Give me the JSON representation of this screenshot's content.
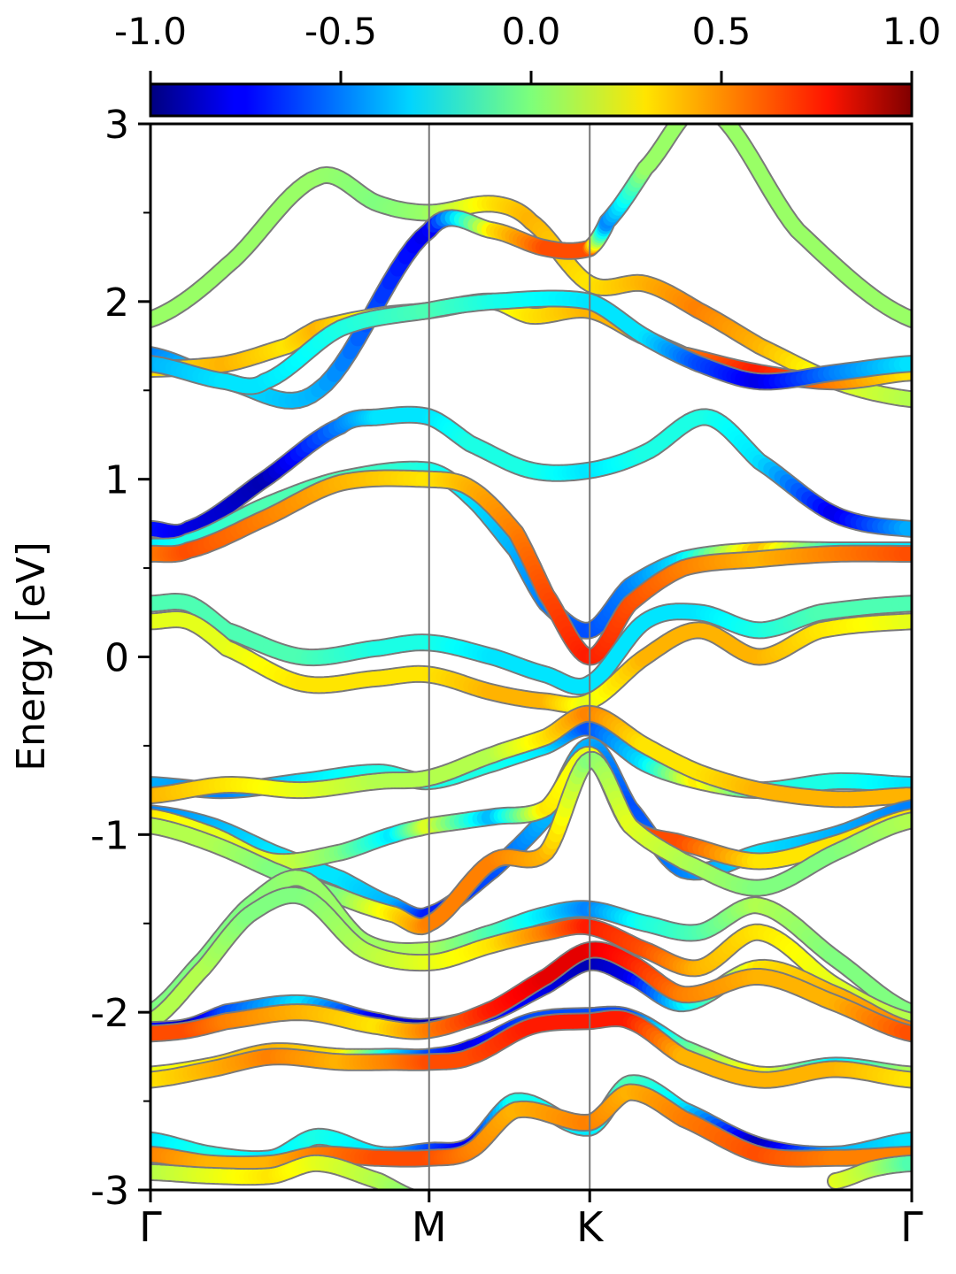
{
  "chart_data": {
    "type": "line",
    "title": "",
    "xlabel": "",
    "ylabel": "Energy [eV]",
    "ylim": [
      -3,
      3
    ],
    "y_ticks": [
      -3,
      -2,
      -1,
      0,
      1,
      2,
      3
    ],
    "y_tick_labels": [
      "-3",
      "-2",
      "-1",
      "0",
      "1",
      "2",
      "3"
    ],
    "high_symmetry_points": [
      {
        "label": "Γ",
        "k": 0.0
      },
      {
        "label": "M",
        "k": 0.366
      },
      {
        "label": "K",
        "k": 0.577
      },
      {
        "label": "Γ",
        "k": 1.0
      }
    ],
    "grid": false,
    "colorbar": {
      "position": "top",
      "colormap": "jet",
      "range": [
        -1.0,
        1.0
      ],
      "tick_labels": [
        "-1.0",
        "-0.5",
        "0.0",
        "0.5",
        "1.0"
      ]
    },
    "series": [
      {
        "k": [
          0,
          0.1,
          0.22,
          0.3,
          0.366,
          0.45,
          0.5,
          0.577,
          0.65,
          0.72,
          0.8,
          0.9,
          1.0
        ],
        "values": [
          1.9,
          2.2,
          2.7,
          2.55,
          2.5,
          2.55,
          2.45,
          2.1,
          2.1,
          1.95,
          1.75,
          1.55,
          1.45
        ],
        "w": [
          0.05,
          0.05,
          0.05,
          0.0,
          0.05,
          0.3,
          0.4,
          0.3,
          0.4,
          0.5,
          0.4,
          0.2,
          0.1
        ]
      },
      {
        "k": [
          0,
          0.1,
          0.22,
          0.366,
          0.45,
          0.52,
          0.577,
          0.6,
          0.65,
          0.73,
          0.85,
          1.0
        ],
        "values": [
          1.7,
          1.55,
          1.5,
          2.4,
          2.4,
          2.3,
          2.3,
          2.45,
          2.75,
          3.1,
          2.4,
          1.9
        ],
        "w": [
          -0.5,
          -0.3,
          -0.4,
          -0.8,
          0.3,
          0.6,
          0.6,
          -0.5,
          0.05,
          0.05,
          0.05,
          0.05
        ]
      },
      {
        "k": [
          0,
          0.1,
          0.18,
          0.22,
          0.3,
          0.366,
          0.45,
          0.5,
          0.577,
          0.65,
          0.7,
          0.8,
          0.9,
          1.0
        ],
        "values": [
          1.62,
          1.65,
          1.75,
          1.85,
          1.92,
          1.95,
          2.0,
          1.92,
          1.95,
          1.8,
          1.7,
          1.6,
          1.55,
          1.6
        ],
        "w": [
          0.3,
          0.4,
          0.3,
          0.4,
          0.2,
          0.1,
          0.2,
          0.3,
          0.4,
          0.4,
          0.5,
          0.7,
          0.5,
          0.3
        ]
      },
      {
        "k": [
          0,
          0.1,
          0.15,
          0.25,
          0.366,
          0.45,
          0.577,
          0.65,
          0.72,
          0.8,
          0.9,
          1.0
        ],
        "values": [
          1.65,
          1.55,
          1.55,
          1.85,
          1.95,
          2.0,
          2.0,
          1.8,
          1.65,
          1.55,
          1.6,
          1.65
        ],
        "w": [
          -0.4,
          -0.3,
          -0.3,
          -0.2,
          -0.1,
          -0.2,
          -0.3,
          -0.3,
          -0.6,
          -0.8,
          -0.5,
          -0.3
        ]
      },
      {
        "k": [
          0,
          0.05,
          0.15,
          0.25,
          0.3,
          0.366,
          0.42,
          0.5,
          0.577,
          0.65,
          0.73,
          0.8,
          0.9,
          1.0
        ],
        "values": [
          0.72,
          0.72,
          1.0,
          1.3,
          1.35,
          1.35,
          1.2,
          1.05,
          1.05,
          1.15,
          1.35,
          1.1,
          0.8,
          0.72
        ],
        "w": [
          -0.7,
          -0.8,
          -0.9,
          -0.5,
          -0.3,
          -0.3,
          -0.2,
          -0.2,
          -0.3,
          -0.2,
          -0.2,
          -0.3,
          -0.8,
          -0.4
        ]
      },
      {
        "k": [
          0,
          0.05,
          0.15,
          0.25,
          0.366,
          0.42,
          0.48,
          0.52,
          0.577,
          0.63,
          0.7,
          0.8,
          0.9,
          1.0
        ],
        "values": [
          0.62,
          0.65,
          0.85,
          1.0,
          1.05,
          0.9,
          0.6,
          0.3,
          0.15,
          0.4,
          0.55,
          0.6,
          0.6,
          0.6
        ],
        "w": [
          -0.3,
          -0.2,
          -0.1,
          -0.1,
          -0.2,
          -0.3,
          -0.4,
          -0.5,
          -0.6,
          -0.5,
          -0.3,
          0.4,
          -0.2,
          -0.3
        ]
      },
      {
        "k": [
          0,
          0.05,
          0.15,
          0.25,
          0.366,
          0.42,
          0.48,
          0.52,
          0.577,
          0.63,
          0.7,
          0.8,
          0.9,
          1.0
        ],
        "values": [
          0.58,
          0.6,
          0.78,
          0.98,
          1.0,
          0.95,
          0.7,
          0.35,
          0.0,
          0.3,
          0.5,
          0.55,
          0.58,
          0.58
        ],
        "w": [
          0.5,
          0.6,
          0.5,
          0.4,
          0.3,
          0.4,
          0.5,
          0.6,
          0.7,
          0.6,
          0.5,
          0.4,
          0.5,
          0.6
        ]
      },
      {
        "k": [
          0,
          0.05,
          0.1,
          0.2,
          0.3,
          0.366,
          0.45,
          0.52,
          0.577,
          0.65,
          0.72,
          0.8,
          0.88,
          1.0
        ],
        "values": [
          0.3,
          0.3,
          0.15,
          0.0,
          0.05,
          0.08,
          0.0,
          -0.1,
          -0.15,
          0.2,
          0.25,
          0.15,
          0.25,
          0.3
        ],
        "w": [
          -0.1,
          -0.1,
          -0.1,
          -0.1,
          -0.2,
          -0.2,
          -0.3,
          -0.3,
          -0.3,
          -0.3,
          -0.3,
          -0.2,
          -0.1,
          -0.1
        ]
      },
      {
        "k": [
          0,
          0.05,
          0.1,
          0.2,
          0.3,
          0.366,
          0.45,
          0.52,
          0.577,
          0.65,
          0.72,
          0.8,
          0.88,
          1.0
        ],
        "values": [
          0.2,
          0.2,
          0.05,
          -0.15,
          -0.12,
          -0.1,
          -0.2,
          -0.25,
          -0.25,
          0.0,
          0.15,
          0.0,
          0.15,
          0.2
        ],
        "w": [
          0.2,
          0.2,
          0.2,
          0.3,
          0.3,
          0.3,
          0.4,
          0.4,
          0.2,
          0.4,
          0.4,
          0.4,
          0.3,
          0.2
        ]
      },
      {
        "k": [
          0,
          0.1,
          0.2,
          0.3,
          0.366,
          0.45,
          0.52,
          0.577,
          0.65,
          0.72,
          0.8,
          0.9,
          1.0
        ],
        "values": [
          -0.72,
          -0.75,
          -0.7,
          -0.65,
          -0.7,
          -0.6,
          -0.5,
          -0.4,
          -0.6,
          -0.7,
          -0.75,
          -0.7,
          -0.72
        ],
        "w": [
          -0.4,
          -0.5,
          -0.3,
          -0.2,
          -0.2,
          -0.2,
          -0.3,
          -0.6,
          -0.3,
          0.3,
          -0.2,
          -0.2,
          -0.3
        ]
      },
      {
        "k": [
          0,
          0.1,
          0.2,
          0.3,
          0.366,
          0.45,
          0.52,
          0.577,
          0.65,
          0.72,
          0.8,
          0.9,
          1.0
        ],
        "values": [
          -0.78,
          -0.72,
          -0.75,
          -0.7,
          -0.68,
          -0.55,
          -0.45,
          -0.32,
          -0.5,
          -0.65,
          -0.75,
          -0.8,
          -0.78
        ],
        "w": [
          0.4,
          0.3,
          0.2,
          0.1,
          0.1,
          0.1,
          0.3,
          0.5,
          0.3,
          0.3,
          0.4,
          0.4,
          0.4
        ]
      },
      {
        "k": [
          0,
          0.08,
          0.16,
          0.25,
          0.32,
          0.366,
          0.45,
          0.52,
          0.577,
          0.63,
          0.7,
          0.8,
          0.9,
          1.0
        ],
        "values": [
          -0.88,
          -0.95,
          -1.1,
          -1.25,
          -1.4,
          -1.45,
          -1.2,
          -0.9,
          -0.5,
          -0.85,
          -1.2,
          -1.1,
          -1.0,
          -0.85
        ],
        "w": [
          -0.5,
          -0.4,
          -0.3,
          -0.3,
          -0.4,
          -0.7,
          -0.6,
          -0.4,
          -0.4,
          -0.6,
          -0.5,
          -0.3,
          -0.4,
          -0.5
        ]
      },
      {
        "k": [
          0,
          0.08,
          0.16,
          0.25,
          0.32,
          0.366,
          0.45,
          0.52,
          0.577,
          0.63,
          0.7,
          0.8,
          0.9,
          1.0
        ],
        "values": [
          -0.9,
          -1.0,
          -1.15,
          -1.1,
          -1.0,
          -0.95,
          -0.9,
          -0.85,
          -0.55,
          -0.95,
          -1.05,
          -1.15,
          -1.05,
          -0.9
        ],
        "w": [
          0.3,
          0.2,
          0.2,
          0.0,
          -0.3,
          0.2,
          -0.4,
          0.3,
          0.2,
          0.6,
          0.6,
          0.3,
          0.3,
          0.3
        ]
      },
      {
        "k": [
          0,
          0.08,
          0.16,
          0.25,
          0.32,
          0.366,
          0.45,
          0.52,
          0.577,
          0.63,
          0.7,
          0.8,
          0.9,
          1.0
        ],
        "values": [
          -0.95,
          -1.05,
          -1.2,
          -1.35,
          -1.45,
          -1.5,
          -1.15,
          -1.1,
          -0.58,
          -0.95,
          -1.15,
          -1.3,
          -1.1,
          -0.92
        ],
        "w": [
          0.1,
          0.1,
          0.0,
          0.0,
          0.3,
          0.5,
          0.5,
          0.4,
          0.0,
          0.2,
          0.1,
          0.0,
          0.0,
          0.1
        ]
      },
      {
        "k": [
          0,
          0.07,
          0.13,
          0.2,
          0.28,
          0.366,
          0.45,
          0.52,
          0.577,
          0.65,
          0.72,
          0.8,
          0.9,
          1.0
        ],
        "values": [
          -2.0,
          -1.7,
          -1.4,
          -1.25,
          -1.6,
          -1.65,
          -1.55,
          -1.45,
          -1.42,
          -1.5,
          -1.55,
          -1.4,
          -1.7,
          -2.0
        ],
        "w": [
          0.0,
          0.0,
          0.0,
          0.05,
          0.05,
          0.1,
          -0.1,
          -0.3,
          -0.5,
          -0.2,
          -0.1,
          0.1,
          0.0,
          0.0
        ]
      },
      {
        "k": [
          0,
          0.07,
          0.13,
          0.2,
          0.28,
          0.366,
          0.45,
          0.52,
          0.577,
          0.65,
          0.72,
          0.8,
          0.9,
          1.0
        ],
        "values": [
          -2.05,
          -1.75,
          -1.45,
          -1.35,
          -1.65,
          -1.72,
          -1.62,
          -1.55,
          -1.52,
          -1.65,
          -1.75,
          -1.55,
          -1.85,
          -2.05
        ],
        "w": [
          0.1,
          0.1,
          0.0,
          0.0,
          0.1,
          0.2,
          0.3,
          0.5,
          0.7,
          0.6,
          0.4,
          0.3,
          0.2,
          0.1
        ]
      },
      {
        "k": [
          0,
          0.05,
          0.1,
          0.2,
          0.3,
          0.366,
          0.45,
          0.52,
          0.577,
          0.63,
          0.7,
          0.8,
          0.9,
          1.0
        ],
        "values": [
          -2.1,
          -2.08,
          -2.0,
          -1.95,
          -2.05,
          -2.08,
          -2.0,
          -1.85,
          -1.72,
          -1.8,
          -1.95,
          -1.75,
          -1.9,
          -2.1
        ],
        "w": [
          -0.7,
          -0.9,
          -0.6,
          -0.3,
          -0.8,
          -0.9,
          -0.7,
          -0.8,
          -0.9,
          -0.8,
          -0.3,
          0.3,
          0.4,
          0.5
        ]
      },
      {
        "k": [
          0,
          0.05,
          0.1,
          0.2,
          0.3,
          0.366,
          0.45,
          0.52,
          0.577,
          0.63,
          0.7,
          0.8,
          0.9,
          1.0
        ],
        "values": [
          -2.12,
          -2.1,
          -2.05,
          -2.0,
          -2.08,
          -2.1,
          -1.98,
          -1.8,
          -1.65,
          -1.72,
          -1.9,
          -1.8,
          -1.95,
          -2.12
        ],
        "w": [
          0.6,
          0.6,
          0.5,
          0.4,
          0.3,
          0.5,
          0.7,
          0.8,
          0.8,
          0.7,
          0.5,
          0.4,
          0.4,
          0.6
        ]
      },
      {
        "k": [
          0,
          0.08,
          0.16,
          0.25,
          0.32,
          0.366,
          0.42,
          0.5,
          0.577,
          0.63,
          0.7,
          0.8,
          0.9,
          1.0
        ],
        "values": [
          -2.35,
          -2.3,
          -2.22,
          -2.25,
          -2.25,
          -2.25,
          -2.2,
          -2.05,
          -2.02,
          -2.03,
          -2.2,
          -2.35,
          -2.3,
          -2.35
        ],
        "w": [
          0.2,
          0.3,
          0.4,
          0.3,
          -0.3,
          -0.6,
          -0.8,
          -0.6,
          -0.6,
          -0.6,
          -0.1,
          0.3,
          -0.3,
          0.1
        ]
      },
      {
        "k": [
          0,
          0.08,
          0.16,
          0.25,
          0.32,
          0.366,
          0.42,
          0.5,
          0.577,
          0.63,
          0.7,
          0.8,
          0.9,
          1.0
        ],
        "values": [
          -2.38,
          -2.32,
          -2.25,
          -2.28,
          -2.28,
          -2.28,
          -2.25,
          -2.08,
          -2.05,
          -2.05,
          -2.25,
          -2.38,
          -2.32,
          -2.38
        ],
        "w": [
          0.3,
          0.4,
          0.5,
          0.4,
          0.5,
          0.6,
          0.6,
          0.7,
          0.7,
          0.7,
          0.4,
          0.4,
          0.4,
          0.3
        ]
      },
      {
        "k": [
          0,
          0.08,
          0.16,
          0.22,
          0.3,
          0.366,
          0.42,
          0.48,
          0.577,
          0.63,
          0.7,
          0.8,
          0.9,
          1.0
        ],
        "values": [
          -2.72,
          -2.8,
          -2.82,
          -2.7,
          -2.8,
          -2.78,
          -2.75,
          -2.5,
          -2.65,
          -2.4,
          -2.55,
          -2.75,
          -2.8,
          -2.72
        ],
        "w": [
          -0.3,
          -0.2,
          -0.3,
          -0.2,
          -0.3,
          -0.6,
          -0.8,
          -0.2,
          -0.3,
          -0.1,
          -0.3,
          -0.9,
          -0.4,
          -0.3
        ]
      },
      {
        "k": [
          0,
          0.08,
          0.16,
          0.22,
          0.3,
          0.366,
          0.42,
          0.48,
          0.577,
          0.63,
          0.7,
          0.8,
          0.9,
          1.0
        ],
        "values": [
          -2.8,
          -2.85,
          -2.85,
          -2.8,
          -2.82,
          -2.82,
          -2.78,
          -2.55,
          -2.62,
          -2.45,
          -2.6,
          -2.8,
          -2.82,
          -2.8
        ],
        "w": [
          0.5,
          0.4,
          0.4,
          0.5,
          0.6,
          0.6,
          0.5,
          0.4,
          0.5,
          0.4,
          0.5,
          0.6,
          0.5,
          0.5
        ]
      },
      {
        "k": [
          0,
          0.08,
          0.16,
          0.22,
          0.3,
          0.35
        ],
        "values": [
          -2.9,
          -2.92,
          -2.92,
          -2.85,
          -2.95,
          -3.05
        ],
        "w": [
          0.1,
          0.2,
          0.3,
          0.2,
          0.1,
          0.0
        ]
      },
      {
        "k": [
          0.9,
          0.95,
          1.0
        ],
        "values": [
          -2.95,
          -2.88,
          -2.85
        ],
        "w": [
          0.2,
          0.1,
          -0.1
        ]
      }
    ]
  }
}
